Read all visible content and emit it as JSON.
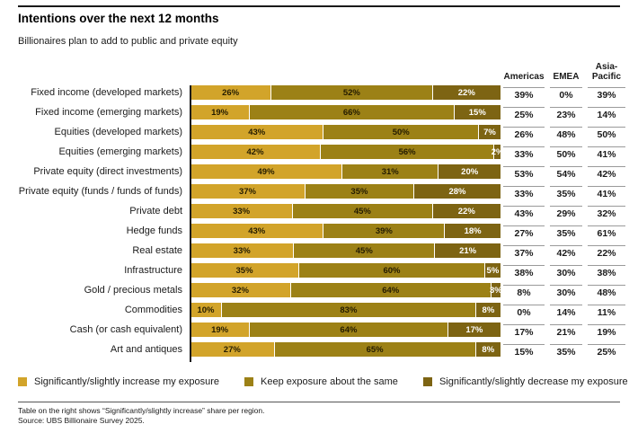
{
  "title": "Intentions over the next 12 months",
  "subtitle": "Billionaires plan to add to public and private equity",
  "colors": {
    "increase": "#D2A42A",
    "keep": "#9C8116",
    "decrease": "#7D6413",
    "segment_text": [
      "#241c00",
      "#241c00",
      "#ffffff"
    ],
    "axis": "#1a1a1a"
  },
  "chart_data": {
    "type": "bar",
    "stacked": true,
    "orientation": "horizontal",
    "unit": "%",
    "categories": [
      "Fixed income (developed markets)",
      "Fixed income (emerging markets)",
      "Equities (developed markets)",
      "Equities (emerging markets)",
      "Private equity (direct investments)",
      "Private equity (funds / funds of funds)",
      "Private debt",
      "Hedge funds",
      "Real estate",
      "Infrastructure",
      "Gold / precious metals",
      "Commodities",
      "Cash (or cash equivalent)",
      "Art and antiques"
    ],
    "series": [
      {
        "name": "Significantly/slightly increase my exposure",
        "values": [
          26,
          19,
          43,
          42,
          49,
          37,
          33,
          43,
          33,
          35,
          32,
          10,
          19,
          27
        ]
      },
      {
        "name": "Keep exposure about the same",
        "values": [
          52,
          66,
          50,
          56,
          31,
          35,
          45,
          39,
          45,
          60,
          64,
          83,
          64,
          65
        ]
      },
      {
        "name": "Significantly/slightly decrease my exposure",
        "values": [
          22,
          15,
          7,
          2,
          20,
          28,
          22,
          18,
          21,
          5,
          3,
          8,
          17,
          8
        ]
      }
    ],
    "region_table": {
      "columns": [
        "Americas",
        "EMEA",
        "Asia-Pacific"
      ],
      "rows": [
        [
          39,
          0,
          39
        ],
        [
          25,
          23,
          14
        ],
        [
          26,
          48,
          50
        ],
        [
          33,
          50,
          41
        ],
        [
          53,
          54,
          42
        ],
        [
          33,
          35,
          41
        ],
        [
          43,
          29,
          32
        ],
        [
          27,
          35,
          61
        ],
        [
          37,
          42,
          22
        ],
        [
          38,
          30,
          38
        ],
        [
          8,
          30,
          48
        ],
        [
          0,
          14,
          11
        ],
        [
          17,
          21,
          19
        ],
        [
          15,
          35,
          25
        ]
      ]
    }
  },
  "legend": [
    {
      "label": "Significantly/slightly increase my exposure",
      "color": "#D2A42A"
    },
    {
      "label": "Keep exposure about the same",
      "color": "#9C8116"
    },
    {
      "label": "Significantly/slightly decrease my exposure",
      "color": "#7D6413"
    }
  ],
  "footnotes": [
    "Table on the right shows “Significantly/slightly increase” share per region.",
    "Source: UBS Billionaire Survey 2025."
  ]
}
